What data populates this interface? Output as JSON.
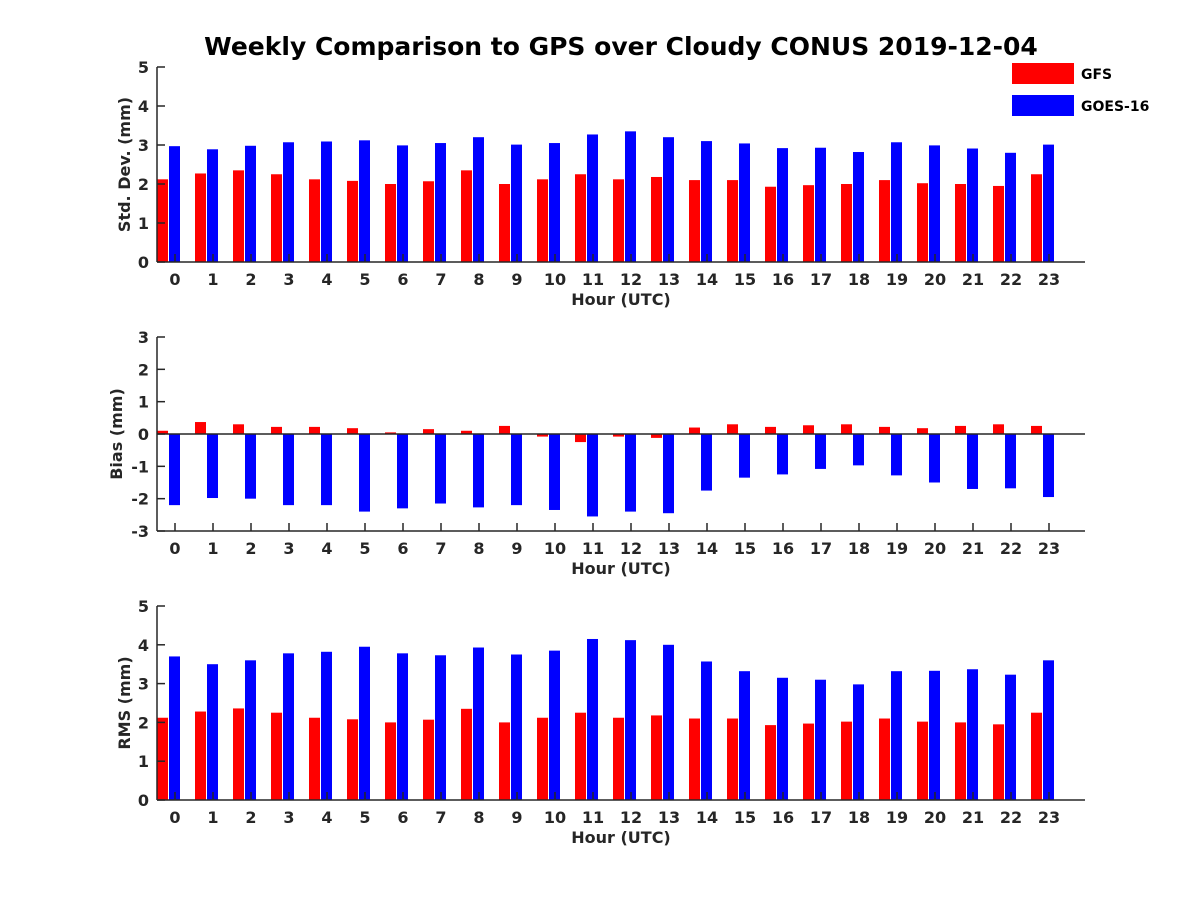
{
  "chart_data": {
    "type": "bar",
    "title": "Weekly Comparison to GPS over Cloudy CONUS 2019-12-04",
    "legend": {
      "placement": "top-right",
      "entries": [
        {
          "name": "GFS",
          "color": "#ff0000"
        },
        {
          "name": "GOES-16",
          "color": "#0000ff"
        }
      ]
    },
    "categories": [
      "0",
      "1",
      "2",
      "3",
      "4",
      "5",
      "6",
      "7",
      "8",
      "9",
      "10",
      "11",
      "12",
      "13",
      "14",
      "15",
      "16",
      "17",
      "18",
      "19",
      "20",
      "21",
      "22",
      "23"
    ],
    "panels": [
      {
        "ylabel": "Std. Dev. (mm)",
        "xlabel": "Hour (UTC)",
        "ylim": [
          0,
          5
        ],
        "yticks": [
          0,
          1,
          2,
          3,
          4,
          5
        ],
        "series": [
          {
            "name": "GFS",
            "color": "#ff0000",
            "values": [
              2.12,
              2.27,
              2.35,
              2.25,
              2.12,
              2.08,
              2.0,
              2.07,
              2.35,
              2.0,
              2.12,
              2.25,
              2.12,
              2.18,
              2.1,
              2.1,
              1.93,
              1.97,
              2.0,
              2.1,
              2.02,
              2.0,
              1.95,
              2.25
            ]
          },
          {
            "name": "GOES-16",
            "color": "#0000ff",
            "values": [
              2.97,
              2.89,
              2.98,
              3.07,
              3.09,
              3.12,
              2.99,
              3.05,
              3.2,
              3.01,
              3.05,
              3.27,
              3.35,
              3.2,
              3.1,
              3.04,
              2.92,
              2.93,
              2.82,
              3.07,
              2.99,
              2.91,
              2.8,
              3.01
            ]
          }
        ]
      },
      {
        "ylabel": "Bias (mm)",
        "xlabel": "Hour (UTC)",
        "ylim": [
          -3,
          3
        ],
        "yticks": [
          -3,
          -2,
          -1,
          0,
          1,
          2,
          3
        ],
        "series": [
          {
            "name": "GFS",
            "color": "#ff0000",
            "values": [
              0.1,
              0.37,
              0.3,
              0.22,
              0.22,
              0.18,
              0.05,
              0.15,
              0.1,
              0.25,
              -0.08,
              -0.25,
              -0.08,
              -0.12,
              0.2,
              0.3,
              0.22,
              0.27,
              0.3,
              0.22,
              0.18,
              0.25,
              0.3,
              0.25
            ]
          },
          {
            "name": "GOES-16",
            "color": "#0000ff",
            "values": [
              -2.2,
              -1.98,
              -2.0,
              -2.2,
              -2.2,
              -2.4,
              -2.3,
              -2.15,
              -2.27,
              -2.2,
              -2.35,
              -2.55,
              -2.4,
              -2.45,
              -1.75,
              -1.35,
              -1.25,
              -1.08,
              -0.97,
              -1.28,
              -1.5,
              -1.7,
              -1.68,
              -1.95
            ]
          }
        ]
      },
      {
        "ylabel": "RMS (mm)",
        "xlabel": "Hour (UTC)",
        "ylim": [
          0,
          5
        ],
        "yticks": [
          0,
          1,
          2,
          3,
          4,
          5
        ],
        "series": [
          {
            "name": "GFS",
            "color": "#ff0000",
            "values": [
              2.12,
              2.28,
              2.36,
              2.25,
              2.12,
              2.08,
              2.0,
              2.07,
              2.35,
              2.0,
              2.12,
              2.25,
              2.12,
              2.18,
              2.1,
              2.1,
              1.93,
              1.97,
              2.02,
              2.1,
              2.02,
              2.0,
              1.95,
              2.25
            ]
          },
          {
            "name": "GOES-16",
            "color": "#0000ff",
            "values": [
              3.7,
              3.5,
              3.6,
              3.78,
              3.82,
              3.95,
              3.78,
              3.73,
              3.93,
              3.75,
              3.85,
              4.15,
              4.12,
              4.0,
              3.57,
              3.32,
              3.15,
              3.1,
              2.98,
              3.32,
              3.33,
              3.37,
              3.23,
              3.6
            ]
          }
        ]
      }
    ]
  }
}
